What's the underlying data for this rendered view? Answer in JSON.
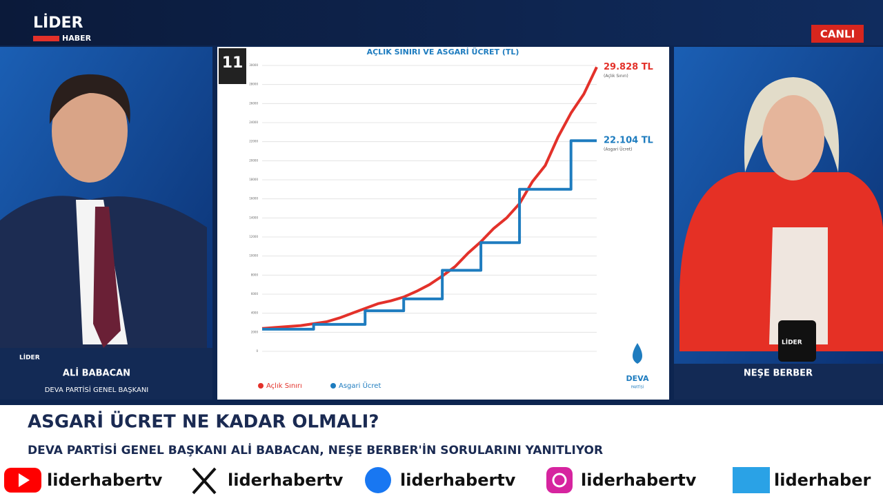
{
  "header": {
    "logo_top": "LİDER",
    "logo_bottom": "HABER",
    "live": "CANLI"
  },
  "left_guest": {
    "name": "ALİ BABACAN",
    "role": "DEVA PARTİSİ GENEL BAŞKANI",
    "mug": "LİDER"
  },
  "right_host": {
    "name": "NEŞE BERBER",
    "mug": "LİDER"
  },
  "slide": {
    "number": "11",
    "party": "DEVA",
    "party_sub": "PARTİSİ"
  },
  "chart_data": {
    "type": "line",
    "title": "AÇLIK SINIRI VE ASGARİ ÜCRET (TL)",
    "ylim": [
      0,
      30000
    ],
    "yticks": [
      0,
      2000,
      4000,
      6000,
      8000,
      10000,
      12000,
      14000,
      16000,
      18000,
      20000,
      22000,
      24000,
      26000,
      28000,
      30000
    ],
    "grid": true,
    "series": [
      {
        "name": "Açlık Sınırı",
        "color": "#e3312a",
        "step": false,
        "end_label": "29.828 TL",
        "end_note": "(Açlık Sınırı)",
        "values": [
          2400,
          2500,
          2600,
          2700,
          2900,
          3100,
          3500,
          4000,
          4500,
          5000,
          5300,
          5700,
          6300,
          7000,
          7900,
          8900,
          10300,
          11500,
          12900,
          14000,
          15500,
          17800,
          19500,
          22500,
          25000,
          27000,
          29828
        ]
      },
      {
        "name": "Asgari Ücret",
        "color": "#1e7cbf",
        "step": true,
        "end_label": "22.104 TL",
        "end_note": "(Asgari Ücret)",
        "values": [
          2324,
          2324,
          2324,
          2324,
          2826,
          2826,
          2826,
          2826,
          4253,
          4253,
          4253,
          5500,
          5500,
          5500,
          8507,
          8507,
          8507,
          11402,
          11402,
          11402,
          17002,
          17002,
          17002,
          17002,
          22104,
          22104,
          22104
        ]
      }
    ]
  },
  "lower_third": {
    "headline": "ASGARİ ÜCRET NE KADAR OLMALI?",
    "subline": "DEVA PARTİSİ GENEL BAŞKANI ALİ BABACAN, NEŞE BERBER'İN SORULARINI YANITLIYOR"
  },
  "social": [
    {
      "handle": "liderhabertv"
    },
    {
      "handle": "liderhabertv"
    },
    {
      "handle": "liderhabertv"
    },
    {
      "handle": "liderhabertv"
    },
    {
      "handle": "liderhaber"
    }
  ]
}
